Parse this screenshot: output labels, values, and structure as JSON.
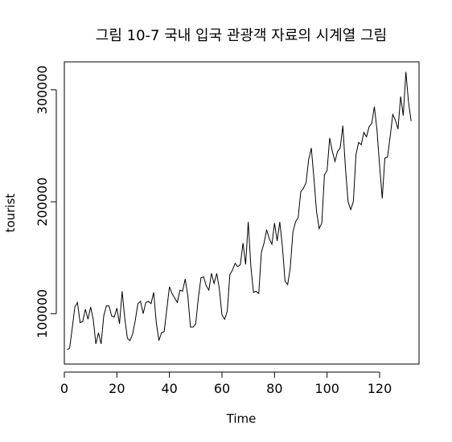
{
  "chart_data": {
    "type": "line",
    "title": "그림 10-7 국내 입국 관광객 자료의 시계열 그림",
    "xlabel": "Time",
    "ylabel": "tourist",
    "xlim": [
      0,
      135
    ],
    "ylim": [
      55000,
      325000
    ],
    "grid": false,
    "x_ticks": [
      0,
      20,
      40,
      60,
      80,
      100,
      120
    ],
    "x_tick_labels": [
      "0",
      "20",
      "40",
      "60",
      "80",
      "100",
      "120"
    ],
    "y_ticks": [
      100000,
      200000,
      300000
    ],
    "y_tick_labels": [
      "100000",
      "200000",
      "300000"
    ],
    "line_color": "#000000",
    "series": [
      {
        "x": [
          1,
          2,
          3,
          4,
          5,
          6,
          7,
          8,
          9,
          10,
          11,
          12,
          13,
          14,
          15,
          16,
          17,
          18,
          19,
          20,
          21,
          22,
          23,
          24,
          25,
          26,
          27,
          28,
          29,
          30,
          31,
          32,
          33,
          34,
          35,
          36,
          37,
          38,
          39,
          40,
          41,
          42,
          43,
          44,
          45,
          46,
          47,
          48,
          49,
          50,
          51,
          52,
          53,
          54,
          55,
          56,
          57,
          58,
          59,
          60,
          61,
          62,
          63,
          64,
          65,
          66,
          67,
          68,
          69,
          70,
          71,
          72,
          73,
          74,
          75,
          76,
          77,
          78,
          79,
          80,
          81,
          82,
          83,
          84,
          85,
          86,
          87,
          88,
          89,
          90,
          91,
          92,
          93,
          94,
          95,
          96,
          97,
          98,
          99,
          100,
          101,
          102,
          103,
          104,
          105,
          106,
          107,
          108,
          109,
          110,
          111,
          112,
          113,
          114,
          115,
          116,
          117,
          118,
          119,
          120,
          121,
          122,
          123,
          124,
          125,
          126,
          127,
          128,
          129,
          130,
          131,
          132
        ],
        "values": [
          68000,
          69000,
          87000,
          106000,
          110000,
          92000,
          93000,
          104000,
          95000,
          106000,
          95000,
          73000,
          83000,
          73000,
          98000,
          107000,
          107000,
          98000,
          97000,
          105000,
          91000,
          120000,
          96000,
          78000,
          76000,
          82000,
          94000,
          109000,
          111000,
          100000,
          110000,
          111000,
          109000,
          119000,
          92000,
          76000,
          83000,
          84000,
          104000,
          124000,
          118000,
          114000,
          110000,
          121000,
          120000,
          131000,
          116000,
          88000,
          88000,
          91000,
          114000,
          132000,
          133000,
          125000,
          121000,
          136000,
          127000,
          136000,
          122000,
          99000,
          95000,
          102000,
          135000,
          139000,
          145000,
          142000,
          144000,
          163000,
          144000,
          182000,
          142000,
          119000,
          120000,
          118000,
          155000,
          163000,
          175000,
          167000,
          162000,
          181000,
          165000,
          182000,
          160000,
          129000,
          126000,
          141000,
          173000,
          182000,
          186000,
          209000,
          212000,
          217000,
          238000,
          248000,
          221000,
          191000,
          176000,
          181000,
          224000,
          228000,
          257000,
          245000,
          236000,
          245000,
          248000,
          268000,
          230000,
          200000,
          193000,
          200000,
          242000,
          253000,
          251000,
          262000,
          258000,
          267000,
          270000,
          285000,
          264000,
          232000,
          203000,
          239000,
          240000,
          258000,
          278000,
          273000,
          265000,
          294000,
          277000,
          316000,
          289000,
          272000
        ]
      }
    ]
  }
}
